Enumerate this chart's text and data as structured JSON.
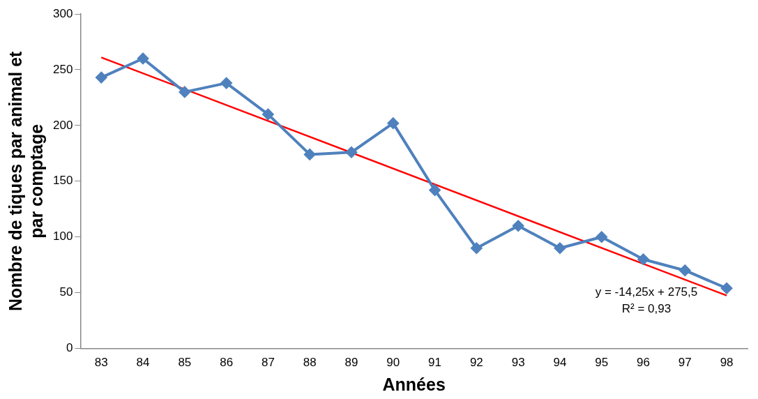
{
  "chart_data": {
    "type": "line",
    "xlabel": "Années",
    "ylabel": "Nombre de tiques par animal et par comptage",
    "categories": [
      "83",
      "84",
      "85",
      "86",
      "87",
      "88",
      "89",
      "90",
      "91",
      "92",
      "93",
      "94",
      "95",
      "96",
      "97",
      "98"
    ],
    "series": [
      {
        "color": "#4f81bd",
        "values": [
          243,
          260,
          230,
          238,
          210,
          174,
          176,
          202,
          142,
          90,
          110,
          90,
          100,
          80,
          70,
          54
        ]
      },
      {
        "type": "line",
        "color": "#ff0000",
        "marker": "none",
        "x": [
          "83",
          "98"
        ],
        "values": [
          261,
          47.5
        ]
      }
    ],
    "marker": "diamond",
    "ylim": [
      0,
      300
    ],
    "yticks": [
      0,
      50,
      100,
      150,
      200,
      250,
      300
    ],
    "grid": false,
    "legend": false,
    "annotations": [
      "y = -14,25x + 275,5",
      "R² = 0,93"
    ]
  }
}
